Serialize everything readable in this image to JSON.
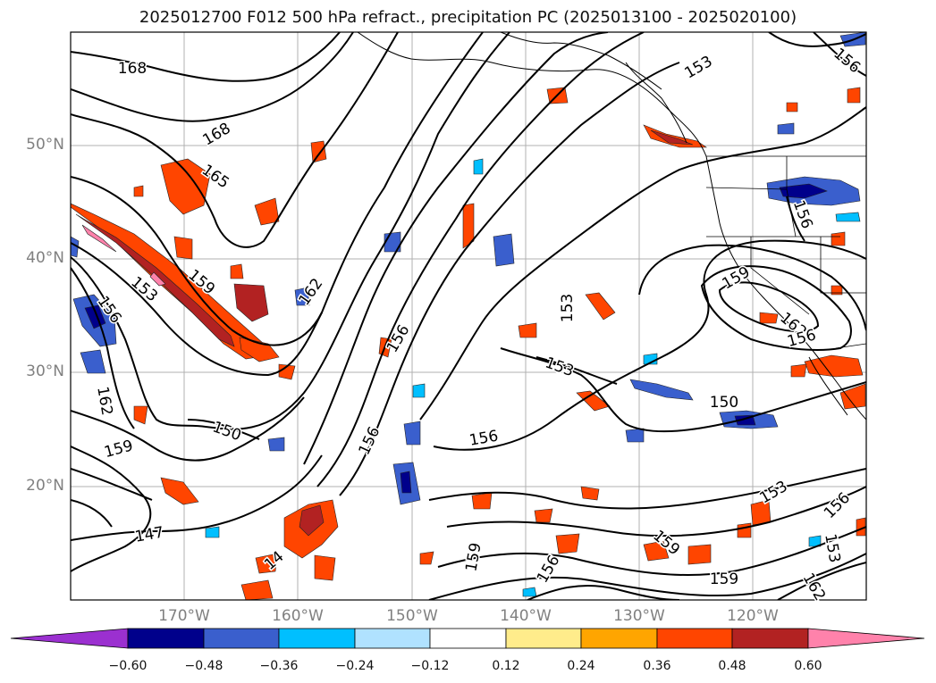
{
  "title": "2025012700 F012 500 hPa refract., precipitation PC (2025013100 - 2025020100)",
  "lat_labels": [
    "50°N",
    "40°N",
    "30°N",
    "20°N"
  ],
  "lon_labels": [
    "170°W",
    "160°W",
    "150°W",
    "140°W",
    "130°W",
    "120°W"
  ],
  "contour_labels": [
    "168",
    "168",
    "165",
    "159",
    "153",
    "156",
    "162",
    "159",
    "150",
    "147",
    "162",
    "156",
    "156",
    "156",
    "153",
    "153",
    "159",
    "162",
    "156",
    "150",
    "153",
    "156",
    "153",
    "162",
    "159",
    "156",
    "153",
    "156",
    "159",
    "156",
    "14",
    "159"
  ],
  "colorbar": {
    "ticks": [
      "−0.60",
      "−0.48",
      "−0.36",
      "−0.24",
      "−0.12",
      "0.12",
      "0.24",
      "0.36",
      "0.48",
      "0.60"
    ],
    "colors": [
      "#9b30d0",
      "#00008b",
      "#3a5fcd",
      "#00bfff",
      "#b0e2ff",
      "#ffffff",
      "#ffec8b",
      "#ffa500",
      "#ff4500",
      "#b22222",
      "#ff82ab"
    ]
  }
}
